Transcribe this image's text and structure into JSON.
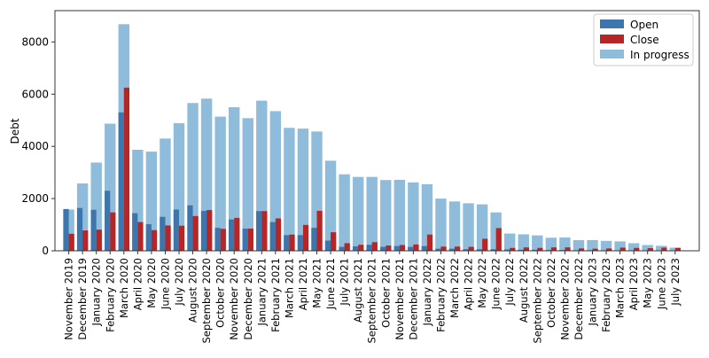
{
  "chart_data": {
    "type": "bar",
    "title": "",
    "xlabel": "",
    "ylabel": "Debt",
    "ylim": [
      0,
      9200
    ],
    "yticks": [
      0,
      2000,
      4000,
      6000,
      8000
    ],
    "grid": false,
    "legend_position": "top-right",
    "categories": [
      "November 2019",
      "December 2019",
      "January 2020",
      "February 2020",
      "March 2020",
      "April 2020",
      "May 2020",
      "June 2020",
      "July 2020",
      "August 2020",
      "September 2020",
      "October 2020",
      "November 2020",
      "December 2020",
      "January 2021",
      "February 2021",
      "March 2021",
      "April 2021",
      "May 2021",
      "June 2021",
      "July 2021",
      "August 2021",
      "September 2021",
      "October 2021",
      "November 2021",
      "December 2021",
      "January 2022",
      "February 2022",
      "March 2022",
      "April 2022",
      "May 2022",
      "June 2022",
      "July 2022",
      "August 2022",
      "September 2022",
      "October 2022",
      "November 2022",
      "December 2022",
      "January 2023",
      "February 2023",
      "March 2023",
      "April 2023",
      "May 2023",
      "June 2023",
      "July 2023"
    ],
    "series": [
      {
        "name": "Open",
        "color": "#3d76ad",
        "values": [
          1600,
          1640,
          1570,
          2300,
          5300,
          1440,
          1020,
          1300,
          1580,
          1740,
          1530,
          880,
          1200,
          850,
          1520,
          1100,
          600,
          600,
          880,
          390,
          150,
          170,
          230,
          150,
          180,
          150,
          180,
          80,
          80,
          60,
          60,
          60,
          50,
          40,
          40,
          30,
          30,
          20,
          20,
          20,
          10,
          10,
          10,
          10,
          10
        ]
      },
      {
        "name": "Close",
        "color": "#b52626",
        "values": [
          650,
          780,
          810,
          1470,
          6250,
          1100,
          790,
          970,
          960,
          1330,
          1560,
          840,
          1260,
          850,
          1520,
          1240,
          620,
          990,
          1530,
          710,
          290,
          230,
          330,
          200,
          220,
          240,
          620,
          160,
          160,
          150,
          460,
          870,
          110,
          130,
          110,
          130,
          130,
          90,
          80,
          90,
          120,
          110,
          100,
          120,
          110
        ]
      },
      {
        "name": "In progress",
        "color": "#8fbcdb",
        "values": [
          1580,
          2580,
          3380,
          4870,
          8680,
          3870,
          3800,
          4300,
          4890,
          5660,
          5830,
          5140,
          5500,
          5080,
          5750,
          5350,
          4710,
          4680,
          4570,
          3450,
          2930,
          2830,
          2830,
          2710,
          2720,
          2620,
          2550,
          2000,
          1890,
          1820,
          1780,
          1470,
          660,
          630,
          590,
          500,
          510,
          410,
          410,
          380,
          360,
          290,
          220,
          190,
          120
        ]
      }
    ]
  }
}
